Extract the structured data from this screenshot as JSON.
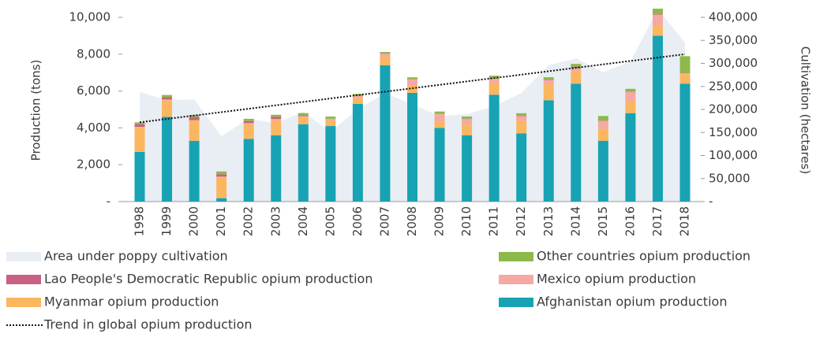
{
  "chart_data": {
    "type": "bar",
    "y_label": "Production (tons)",
    "y2_label": "Cultivation (hectares)",
    "categories": [
      "1998",
      "1999",
      "2000",
      "2001",
      "2002",
      "2003",
      "2004",
      "2005",
      "2006",
      "2007",
      "2008",
      "2009",
      "2010",
      "2011",
      "2012",
      "2013",
      "2014",
      "2015",
      "2016",
      "2017",
      "2018"
    ],
    "series": [
      {
        "name": "Afghanistan opium production",
        "color": "#17a3b4",
        "values": [
          2700,
          4600,
          3300,
          185,
          3400,
          3600,
          4200,
          4100,
          5300,
          7400,
          5900,
          4000,
          3600,
          5800,
          3700,
          5500,
          6400,
          3300,
          4800,
          9000,
          6400
        ]
      },
      {
        "name": "Myanmar opium production",
        "color": "#fbb660",
        "values": [
          1300,
          900,
          1100,
          1100,
          800,
          800,
          370,
          310,
          315,
          460,
          410,
          330,
          580,
          610,
          690,
          870,
          670,
          650,
          650,
          550,
          520
        ]
      },
      {
        "name": "Mexico opium production",
        "color": "#f6a9a2",
        "values": [
          60,
          40,
          20,
          70,
          60,
          80,
          70,
          70,
          110,
          150,
          325,
          425,
          300,
          250,
          250,
          225,
          162,
          425,
          500,
          600,
          50
        ]
      },
      {
        "name": "Lao People's Democratic Republic opium production",
        "color": "#c8607f",
        "values": [
          140,
          125,
          167,
          130,
          112,
          120,
          43,
          14,
          20,
          9,
          10,
          12,
          18,
          25,
          25,
          25,
          92,
          20,
          20,
          20,
          20
        ]
      },
      {
        "name": "Other countries opium production",
        "color": "#8db94b",
        "values": [
          100,
          120,
          110,
          150,
          120,
          110,
          120,
          120,
          100,
          100,
          100,
          120,
          120,
          150,
          130,
          130,
          150,
          250,
          150,
          300,
          900
        ]
      }
    ],
    "area": {
      "name": "Area under poppy cultivation",
      "color": "#e9eef4",
      "axis": "y2",
      "values": [
        238000,
        220000,
        222000,
        142000,
        180000,
        170000,
        195000,
        151000,
        201000,
        235000,
        212000,
        185000,
        190000,
        207000,
        236000,
        296000,
        311000,
        281000,
        304000,
        418000,
        345000
      ]
    },
    "trend": {
      "name": "Trend in global opium production",
      "color": "#111111",
      "start": 4300,
      "end": 8000
    },
    "ylim": [
      0,
      10000
    ],
    "yticks": [
      {
        "value": 0,
        "label": "-"
      },
      {
        "value": 2000,
        "label": "2,000"
      },
      {
        "value": 4000,
        "label": "4,000"
      },
      {
        "value": 6000,
        "label": "6,000"
      },
      {
        "value": 8000,
        "label": "8,000"
      },
      {
        "value": 10000,
        "label": "10,000"
      }
    ],
    "y2lim": [
      0,
      400000
    ],
    "y2ticks": [
      {
        "value": 0,
        "label": "-"
      },
      {
        "value": 50000,
        "label": "50,000"
      },
      {
        "value": 100000,
        "label": "100,000"
      },
      {
        "value": 150000,
        "label": "150,000"
      },
      {
        "value": 200000,
        "label": "200,000"
      },
      {
        "value": 250000,
        "label": "250,000"
      },
      {
        "value": 300000,
        "label": "300,000"
      },
      {
        "value": 350000,
        "label": "350,000"
      },
      {
        "value": 400000,
        "label": "400,000"
      }
    ]
  }
}
